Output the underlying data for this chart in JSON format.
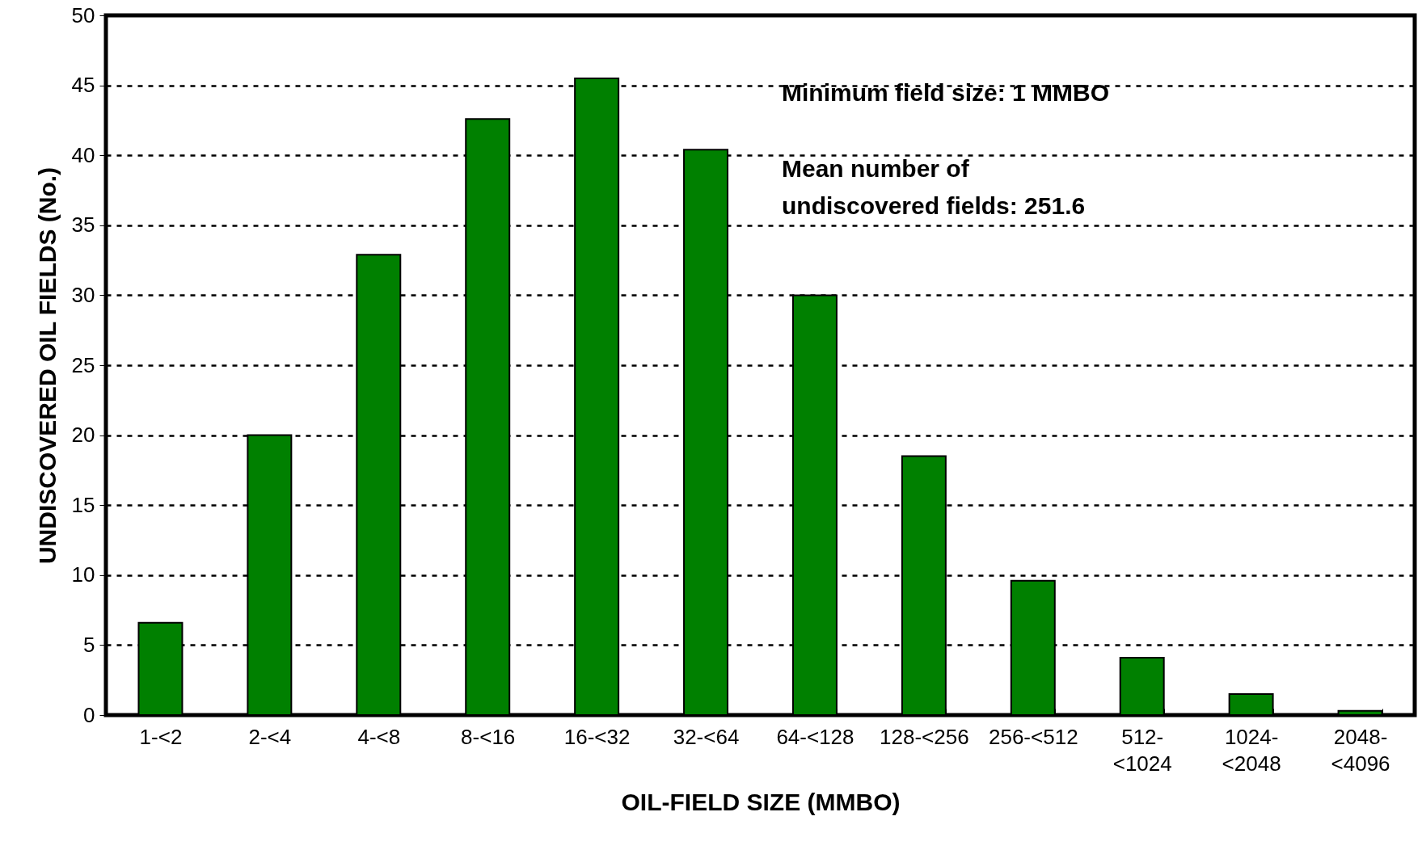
{
  "chart_data": {
    "type": "bar",
    "xlabel": "OIL-FIELD SIZE (MMBO)",
    "ylabel": "UNDISCOVERED OIL FIELDS (No.)",
    "categories": [
      "1-<2",
      "2-<4",
      "4-<8",
      "8-<16",
      "16-<32",
      "32-<64",
      "64-<128",
      "128-<256",
      "256-<512",
      "512-<1024",
      "1024-<2048",
      "2048-<4096"
    ],
    "values": [
      6.6,
      20.0,
      32.9,
      42.6,
      45.5,
      40.4,
      30.0,
      18.5,
      9.6,
      4.1,
      1.5,
      0.3
    ],
    "color": "#008000",
    "ylim": [
      0,
      50
    ],
    "yticks": [
      0,
      5,
      10,
      15,
      20,
      25,
      30,
      35,
      40,
      45,
      50
    ],
    "grid": "y",
    "annotations": [
      "Minimum field size: 1 MMBO",
      "Mean number of\nundiscovered fields: 251.6"
    ]
  }
}
